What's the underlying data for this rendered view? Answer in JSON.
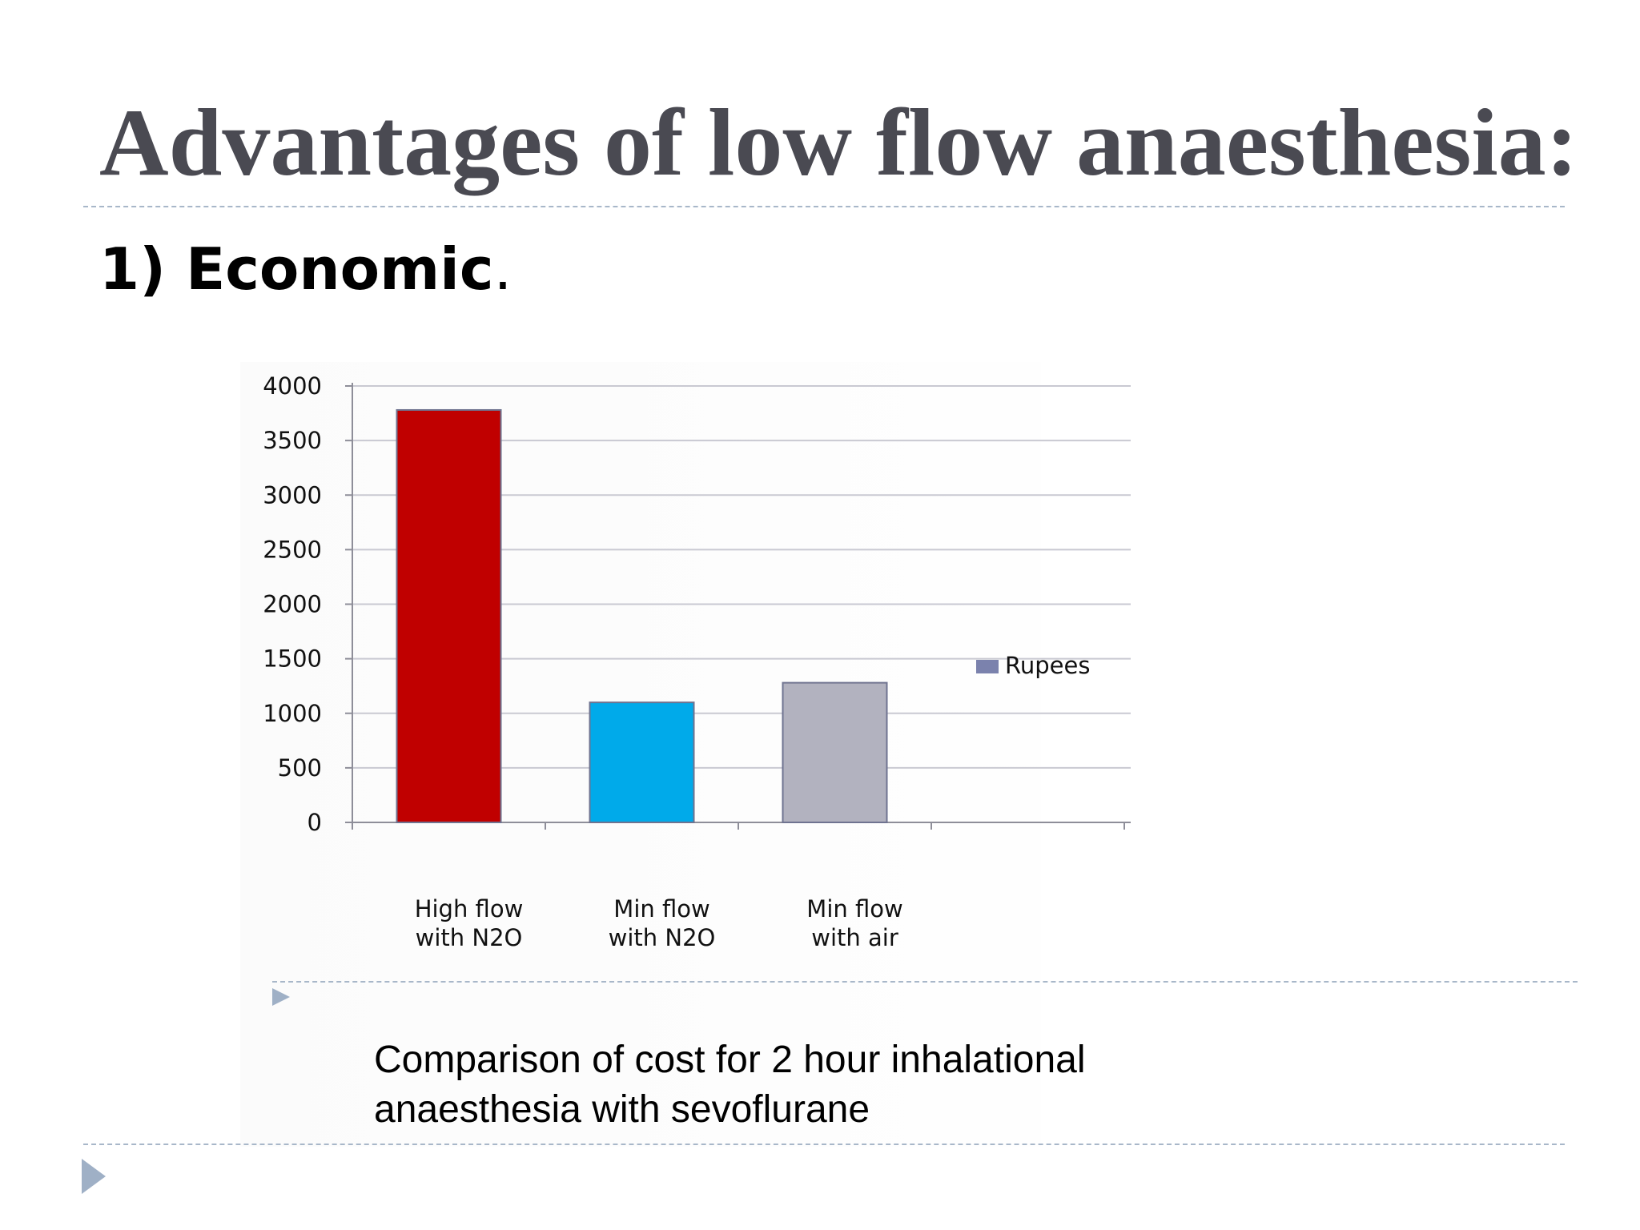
{
  "slide": {
    "title": "Advantages of low flow anaesthesia:",
    "heading": "1) Economic",
    "heading_suffix": ".",
    "caption": [
      "Comparison of cost for 2 hour inhalational",
      "anaesthesia with sevoflurane"
    ],
    "icons": [
      "bullet-arrow-icon",
      "slide-arrow-icon"
    ]
  },
  "chart_data": {
    "type": "bar",
    "categories": [
      [
        "High flow",
        "with N2O"
      ],
      [
        "Min flow",
        "with N2O"
      ],
      [
        "Min flow",
        "with air"
      ]
    ],
    "series": [
      {
        "name": "Rupees",
        "values": [
          3780,
          1100,
          1280
        ]
      }
    ],
    "bar_colors": [
      "#c00000",
      "#00aaea",
      "#b2b2bf"
    ],
    "legend_color": "#7b82ad",
    "ylim": [
      0,
      4000
    ],
    "yticks": [
      0,
      500,
      1000,
      1500,
      2000,
      2500,
      3000,
      3500,
      4000
    ],
    "grid": true,
    "legend": "right",
    "title": "",
    "xlabel": "",
    "ylabel": ""
  }
}
